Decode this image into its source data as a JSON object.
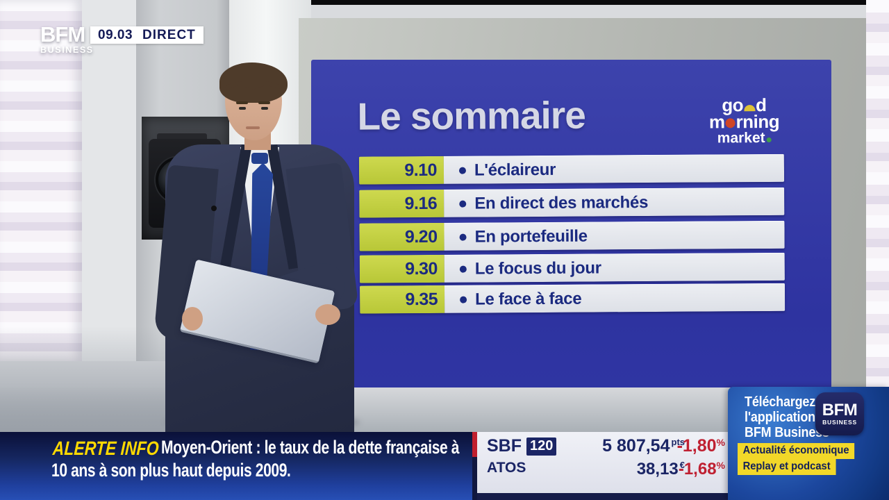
{
  "header": {
    "brand_line1": "BFM",
    "brand_line2": "BUSINESS",
    "time": "09.03",
    "live_label": "DIRECT"
  },
  "board": {
    "title": "Le sommaire",
    "logo": {
      "word1_pre": "go",
      "word1_post": "d",
      "word2_pre": "m",
      "word2_post": "rning",
      "word3": "market"
    },
    "items": [
      {
        "time": "9.10",
        "label": "L'éclaireur"
      },
      {
        "time": "9.16",
        "label": "En direct des marchés"
      },
      {
        "time": "9.20",
        "label": "En portefeuille"
      },
      {
        "time": "9.30",
        "label": "Le focus du jour"
      },
      {
        "time": "9.35",
        "label": "Le face à face"
      }
    ]
  },
  "alert": {
    "label": "ALERTE INFO",
    "headline_line1": "Moyen-Orient : le taux de la dette française à",
    "headline_line2": "10 ans à son plus haut depuis 2009."
  },
  "ticker": {
    "rows": [
      {
        "symbol": "SBF",
        "badge": "120",
        "value": "5 807,54",
        "unit": "pts",
        "change": "-1,80",
        "change_unit": "%"
      },
      {
        "symbol": "ATOS",
        "value": "38,13",
        "unit": "€",
        "change": "-1,68",
        "change_unit": "%"
      }
    ]
  },
  "promo": {
    "line1": "Téléchargez",
    "line2": "l'application",
    "line3": "BFM Business",
    "app_icon_line1": "BFM",
    "app_icon_line2": "BUSINESS",
    "tag1": "Actualité économique",
    "tag2": "Replay et podcast"
  },
  "colors": {
    "board_blue": "#3338a4",
    "lime": "#c4d245",
    "navy_text": "#1b2a80",
    "alert_yellow": "#ffd900",
    "change_red": "#bf2032",
    "promo_yellow": "#f2d829",
    "banner_navy": "#14245f"
  }
}
